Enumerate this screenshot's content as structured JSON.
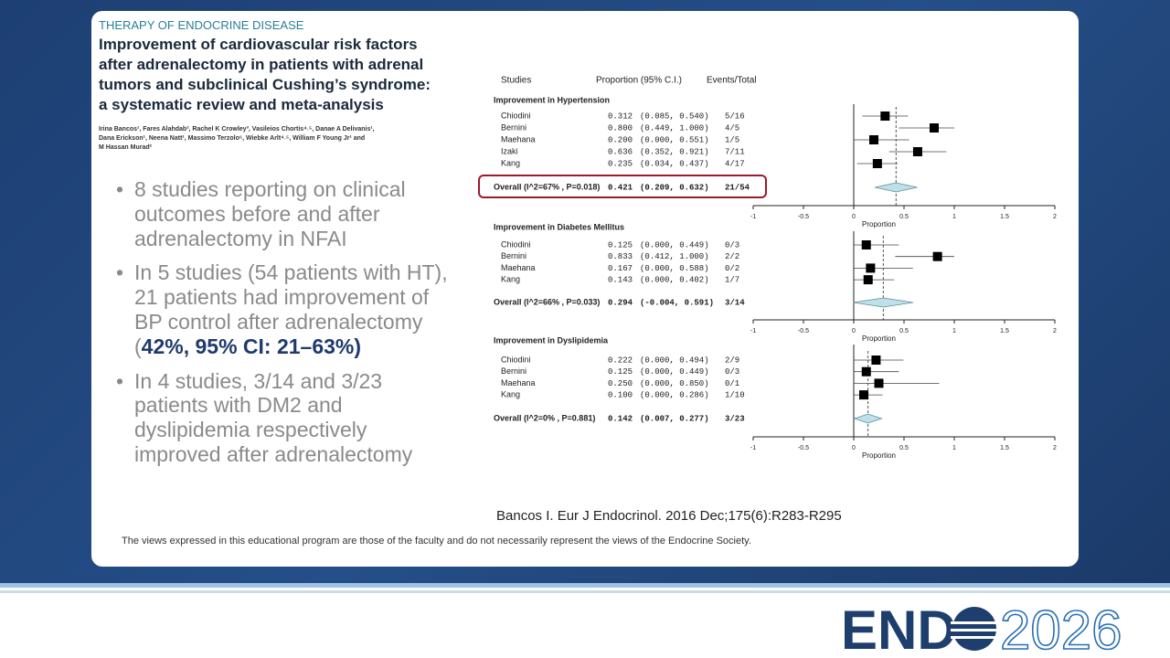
{
  "paper": {
    "kicker": "THERAPY OF ENDOCRINE DISEASE",
    "title_lines": [
      "Improvement of cardiovascular risk factors",
      "after adrenalectomy in patients with adrenal",
      "tumors and subclinical Cushing’s syndrome:",
      "a systematic review and meta-analysis"
    ],
    "author_lines": [
      "Irina Bancos¹, Fares Alahdab², Rachel K Crowley³, Vasileios Chortis⁴˒⁵, Danae A Delivanis¹,",
      "Dana Erickson¹, Neena Natt¹, Massimo Terzolo⁶, Wiebke Arlt⁴˒⁵, William F Young Jr¹ and",
      "M Hassan Murad²"
    ]
  },
  "bullets": [
    {
      "text": "8 studies reporting on clinical outcomes before and after adrenalectomy in NFAI"
    },
    {
      "text": "In 5 studies (54 patients with HT), 21 patients had improvement of BP control after adrenalectomy (",
      "emphasis": "42%, 95% CI: 21–63%)"
    },
    {
      "text": "In 4 studies, 3/14 and 3/23 patients with DM2 and dyslipidemia respectively improved after adrenalectomy"
    }
  ],
  "forest": {
    "headers": [
      "Studies",
      "Proportion (95% C.I.)",
      "Events/Total"
    ],
    "axis_ticks": [
      -1,
      -0.5,
      0,
      0.5,
      1,
      1.5,
      2
    ],
    "axis_label": "Proportion",
    "sections": [
      {
        "title": "Improvement in Hypertension",
        "rows": [
          {
            "study": "Chiodini",
            "estimate": "0.312",
            "ci": "(0.085, 0.540)",
            "events": "5/16"
          },
          {
            "study": "Bernini",
            "estimate": "0.800",
            "ci": "(0.449, 1.000)",
            "events": "4/5"
          },
          {
            "study": "Maehana",
            "estimate": "0.200",
            "ci": "(0.000, 0.551)",
            "events": "1/5"
          },
          {
            "study": "Izaki",
            "estimate": "0.636",
            "ci": "(0.352, 0.921)",
            "events": "7/11"
          },
          {
            "study": "Kang",
            "estimate": "0.235",
            "ci": "(0.034, 0.437)",
            "events": "4/17"
          }
        ],
        "overall": {
          "label": "Overall (I^2=67% , P=0.018)",
          "estimate": "0.421",
          "ci": "(0.209, 0.632)",
          "events": "21/54"
        }
      },
      {
        "title": "Improvement in Diabetes Mellitus",
        "rows": [
          {
            "study": "Chiodini",
            "estimate": "0.125",
            "ci": "(0.000, 0.449)",
            "events": "0/3"
          },
          {
            "study": "Bernini",
            "estimate": "0.833",
            "ci": "(0.412, 1.000)",
            "events": "2/2"
          },
          {
            "study": "Maehana",
            "estimate": "0.167",
            "ci": "(0.000, 0.588)",
            "events": "0/2"
          },
          {
            "study": "Kang",
            "estimate": "0.143",
            "ci": "(0.000, 0.402)",
            "events": "1/7"
          }
        ],
        "overall": {
          "label": "Overall (I^2=66% , P=0.033)",
          "estimate": "0.294",
          "ci": "(-0.004, 0.591)",
          "events": "3/14"
        }
      },
      {
        "title": "Improvement in Dyslipidemia",
        "rows": [
          {
            "study": "Chiodini",
            "estimate": "0.222",
            "ci": "(0.000, 0.494)",
            "events": "2/9"
          },
          {
            "study": "Bernini",
            "estimate": "0.125",
            "ci": "(0.000, 0.449)",
            "events": "0/3"
          },
          {
            "study": "Maehana",
            "estimate": "0.250",
            "ci": "(0.000, 0.850)",
            "events": "0/1"
          },
          {
            "study": "Kang",
            "estimate": "0.100",
            "ci": "(0.000, 0.286)",
            "events": "1/10"
          }
        ],
        "overall": {
          "label": "Overall (I^2=0% , P=0.881)",
          "estimate": "0.142",
          "ci": "(0.007, 0.277)",
          "events": "3/23"
        }
      }
    ]
  },
  "citation": "Bancos I. Eur J Endocrinol. 2016 Dec;175(6):R283-R295",
  "disclaimer": "The views expressed in this educational program are those of the faculty and do not necessarily represent the views of the Endocrine Society.",
  "logo": {
    "text": "END",
    "year": "2026"
  }
}
